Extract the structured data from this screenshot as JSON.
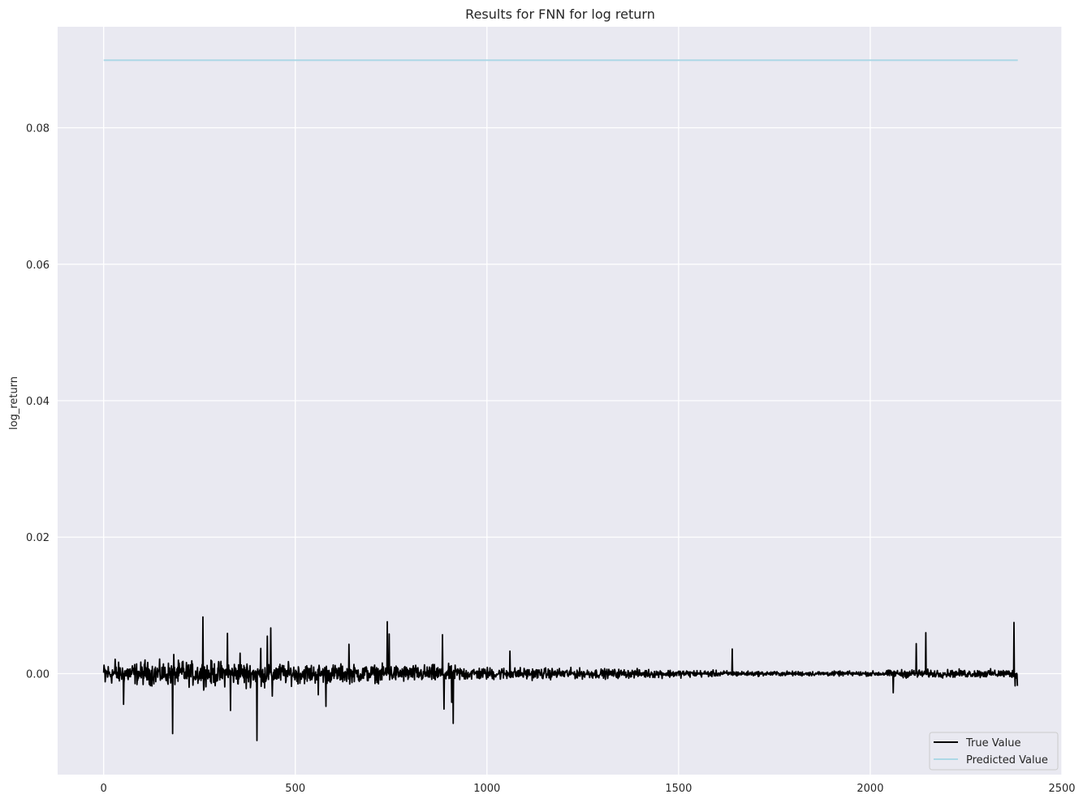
{
  "chart_data": {
    "type": "line",
    "title": "Results for FNN for log return",
    "xlabel": "",
    "ylabel": "log_return",
    "xlim": [
      -120,
      2500
    ],
    "ylim": [
      -0.0148,
      0.0948
    ],
    "xticks": [
      0,
      500,
      1000,
      1500,
      2000,
      2500
    ],
    "yticks": [
      0.0,
      0.02,
      0.04,
      0.06,
      0.08
    ],
    "ytick_labels": [
      "0.00",
      "0.02",
      "0.04",
      "0.06",
      "0.08"
    ],
    "grid": true,
    "legend_position": "lower-right",
    "background_color": "#e9e9f1",
    "series": [
      {
        "name": "True Value",
        "color": "#000000",
        "n_points": 2385,
        "noise_envelope": [
          [
            0,
            0.0022
          ],
          [
            300,
            0.0026
          ],
          [
            460,
            0.0022
          ],
          [
            700,
            0.0018
          ],
          [
            900,
            0.0018
          ],
          [
            960,
            0.0014
          ],
          [
            1200,
            0.0011
          ],
          [
            1500,
            0.0008
          ],
          [
            1700,
            0.0005
          ],
          [
            2000,
            0.0005
          ],
          [
            2100,
            0.0009
          ],
          [
            2200,
            0.0008
          ],
          [
            2385,
            0.0009
          ]
        ],
        "spikes": [
          {
            "x": 2,
            "y": 0.0008
          },
          {
            "x": 4,
            "y": -0.0012
          },
          {
            "x": 30,
            "y": 0.0021
          },
          {
            "x": 52,
            "y": -0.0045
          },
          {
            "x": 108,
            "y": 0.002
          },
          {
            "x": 180,
            "y": -0.0088
          },
          {
            "x": 183,
            "y": 0.0028
          },
          {
            "x": 207,
            "y": 0.0018
          },
          {
            "x": 259,
            "y": 0.0083
          },
          {
            "x": 262,
            "y": -0.002
          },
          {
            "x": 323,
            "y": 0.0059
          },
          {
            "x": 331,
            "y": -0.0054
          },
          {
            "x": 356,
            "y": 0.003
          },
          {
            "x": 372,
            "y": -0.0022
          },
          {
            "x": 400,
            "y": -0.0098
          },
          {
            "x": 410,
            "y": 0.0037
          },
          {
            "x": 420,
            "y": -0.0021
          },
          {
            "x": 427,
            "y": 0.0055
          },
          {
            "x": 436,
            "y": 0.0067
          },
          {
            "x": 440,
            "y": -0.0033
          },
          {
            "x": 560,
            "y": -0.0031
          },
          {
            "x": 580,
            "y": -0.0048
          },
          {
            "x": 640,
            "y": 0.0043
          },
          {
            "x": 740,
            "y": 0.0076
          },
          {
            "x": 745,
            "y": 0.0058
          },
          {
            "x": 884,
            "y": 0.0057
          },
          {
            "x": 888,
            "y": -0.0052
          },
          {
            "x": 908,
            "y": -0.0042
          },
          {
            "x": 912,
            "y": -0.0073
          },
          {
            "x": 1060,
            "y": 0.0033
          },
          {
            "x": 1640,
            "y": 0.0036
          },
          {
            "x": 2060,
            "y": -0.0028
          },
          {
            "x": 2120,
            "y": 0.0044
          },
          {
            "x": 2145,
            "y": 0.006
          },
          {
            "x": 2375,
            "y": 0.0075
          },
          {
            "x": 2378,
            "y": -0.0018
          },
          {
            "x": 2384,
            "y": -0.0018
          }
        ]
      },
      {
        "name": "Predicted Value",
        "color": "#add8e6",
        "x": [
          0,
          2385
        ],
        "y": [
          0.0899,
          0.0899
        ]
      }
    ]
  }
}
